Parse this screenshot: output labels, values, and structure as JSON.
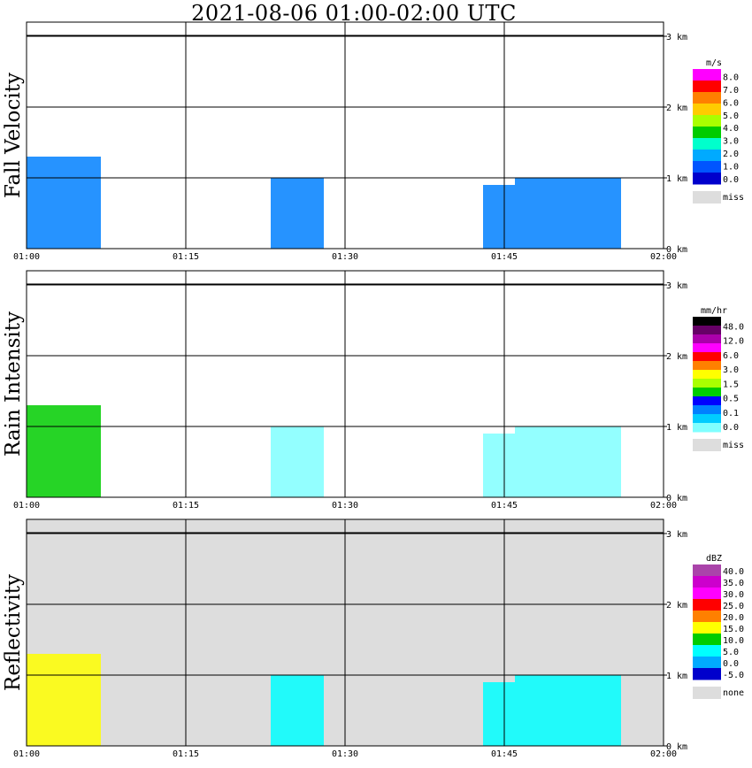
{
  "title": "2021-08-06   01:00-02:00 UTC",
  "chart_data": [
    {
      "type": "heatmap",
      "ylabel": "Fall Velocity",
      "x_ticks": [
        "01:00",
        "01:15",
        "01:30",
        "01:45",
        "02:00"
      ],
      "y_ticks": [
        "0 km",
        "1 km",
        "2 km",
        "3 km"
      ],
      "xlim": [
        "01:00",
        "02:00"
      ],
      "ylim_km": [
        0,
        3.2
      ],
      "background": "#ffffff",
      "colorbar": {
        "unit": "m/s",
        "labels": [
          "8.0",
          "7.0",
          "6.0",
          "5.0",
          "4.0",
          "3.0",
          "2.0",
          "1.0",
          "0.0"
        ],
        "colors": [
          "#ff00ff",
          "#ff0000",
          "#ff8000",
          "#ffcc00",
          "#aaff00",
          "#00cc00",
          "#00ffcc",
          "#00aaff",
          "#0055ff",
          "#0000cc"
        ],
        "missing_label": "miss",
        "missing_color": "#dddddd"
      },
      "echo_regions": [
        {
          "start": "01:00",
          "end": "01:07",
          "top_km": 1.3,
          "color": "#0080ff"
        },
        {
          "start": "01:23",
          "end": "01:28",
          "top_km": 1.0,
          "color": "#0080ff"
        },
        {
          "start": "01:43",
          "end": "01:46",
          "top_km": 0.9,
          "color": "#0080ff"
        },
        {
          "start": "01:46",
          "end": "01:56",
          "top_km": 1.0,
          "color": "#0080ff"
        }
      ]
    },
    {
      "type": "heatmap",
      "ylabel": "Rain Intensity",
      "x_ticks": [
        "01:00",
        "01:15",
        "01:30",
        "01:45",
        "02:00"
      ],
      "y_ticks": [
        "0 km",
        "1 km",
        "2 km",
        "3 km"
      ],
      "xlim": [
        "01:00",
        "02:00"
      ],
      "ylim_km": [
        0,
        3.2
      ],
      "background": "#ffffff",
      "colorbar": {
        "unit": "mm/hr",
        "labels": [
          "48.0",
          "12.0",
          "6.0",
          "3.0",
          "1.5",
          "0.5",
          "0.1",
          "0.0"
        ],
        "colors": [
          "#000000",
          "#660066",
          "#aa00aa",
          "#ff00ff",
          "#ff0000",
          "#ff8000",
          "#ffff00",
          "#aaff00",
          "#00cc00",
          "#0000ff",
          "#0080ff",
          "#00ccff",
          "#80ffff"
        ],
        "missing_label": "miss",
        "missing_color": "#dddddd"
      },
      "echo_regions": [
        {
          "start": "01:00",
          "end": "01:07",
          "top_km": 1.3,
          "color": "#00cc00"
        },
        {
          "start": "01:23",
          "end": "01:28",
          "top_km": 1.0,
          "color": "#80ffff"
        },
        {
          "start": "01:43",
          "end": "01:46",
          "top_km": 0.9,
          "color": "#80ffff"
        },
        {
          "start": "01:46",
          "end": "01:56",
          "top_km": 1.0,
          "color": "#80ffff"
        }
      ]
    },
    {
      "type": "heatmap",
      "ylabel": "Reflectivity",
      "x_ticks": [
        "01:00",
        "01:15",
        "01:30",
        "01:45",
        "02:00"
      ],
      "y_ticks": [
        "0 km",
        "1 km",
        "2 km",
        "3 km"
      ],
      "xlim": [
        "01:00",
        "02:00"
      ],
      "ylim_km": [
        0,
        3.2
      ],
      "background": "#dddddd",
      "colorbar": {
        "unit": "dBZ",
        "labels": [
          "40.0",
          "35.0",
          "30.0",
          "25.0",
          "20.0",
          "15.0",
          "10.0",
          "5.0",
          "0.0",
          "-5.0"
        ],
        "colors": [
          "#aa44aa",
          "#cc00cc",
          "#ff00ff",
          "#ff0000",
          "#ff8000",
          "#ffff00",
          "#00cc00",
          "#00ffff",
          "#00aaff",
          "#0000cc"
        ],
        "missing_label": "none",
        "missing_color": "#dddddd"
      },
      "echo_regions": [
        {
          "start": "01:00",
          "end": "01:07",
          "top_km": 1.3,
          "color": "#ffff00"
        },
        {
          "start": "01:23",
          "end": "01:28",
          "top_km": 1.0,
          "color": "#00ffff"
        },
        {
          "start": "01:43",
          "end": "01:46",
          "top_km": 0.9,
          "color": "#00ffff"
        },
        {
          "start": "01:46",
          "end": "01:56",
          "top_km": 1.0,
          "color": "#00ffff"
        }
      ]
    }
  ]
}
